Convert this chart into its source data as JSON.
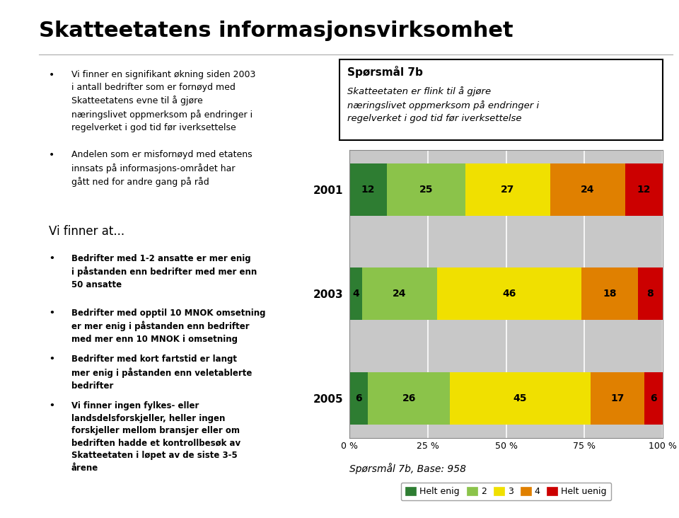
{
  "years": [
    "2005",
    "2003",
    "2001"
  ],
  "series_names": [
    "Helt enig",
    "2",
    "3",
    "4",
    "Helt uenig"
  ],
  "series": {
    "Helt enig": [
      6,
      4,
      12
    ],
    "2": [
      26,
      24,
      25
    ],
    "3": [
      45,
      46,
      27
    ],
    "4": [
      17,
      18,
      24
    ],
    "Helt uenig": [
      6,
      8,
      12
    ]
  },
  "colors": {
    "Helt enig": "#2e7d32",
    "2": "#8bc34a",
    "3": "#f0e000",
    "4": "#e08000",
    "Helt uenig": "#cc0000"
  },
  "bar_height": 0.5,
  "xlim": [
    0,
    100
  ],
  "xticks": [
    0,
    25,
    50,
    75,
    100
  ],
  "xticklabels": [
    "0 %",
    "25 %",
    "50 %",
    "75 %",
    "100 %"
  ],
  "title": "Skatteetatens informasjonsvirksomhet",
  "question_box_title": "Spørsmål 7b",
  "question_box_text": "Skatteetaten er flink til å gjøre\nnæringslivet oppmerksom på endringer i\nregelverket i god tid før iverksettelse",
  "bottom_label": "Spørsmål 7b, Base: 958",
  "chart_bg": "#c8c8c8",
  "page_bg": "#ffffff",
  "sidebar_color": "#2e3399",
  "sidebar_bottom_color": "#2e3399",
  "title_fontsize": 22,
  "bullet1": "Vi finner en signifikant økning siden 2003 i antall bedrifter som er fornøyd med Skatteetatens evne til å gjøre næringslivet oppmerksom på endringer i regelverket i god tid før iverksettelse",
  "bullet2": "Andelen som er misfornøyd med etatens innsats på informasjons-området har gått ned for andre gang på råd",
  "vi_finner_header": "Vi finner at...",
  "bullets_vi_finner": [
    "Bedrifter med 1-2 ansatte er mer enig i påstanden enn bedrifter med mer enn 50 ansatte",
    "Bedrifter med opptil 10 MNOK omsetning er mer enig i påstanden enn bedrifter med mer enn 10 MNOK i omsetning",
    "Bedrifter med kort fartstid er langt mer enig i påstanden enn veletablerte bedrifter",
    "Vi finner ingen fylkes- eller landsdelsforskjeller, heller ingen forskjeller mellom bransjer eller om bedriften hadde et kontrollbesøk av Skatteetaten i løpet av de siste 3-5 årene"
  ]
}
